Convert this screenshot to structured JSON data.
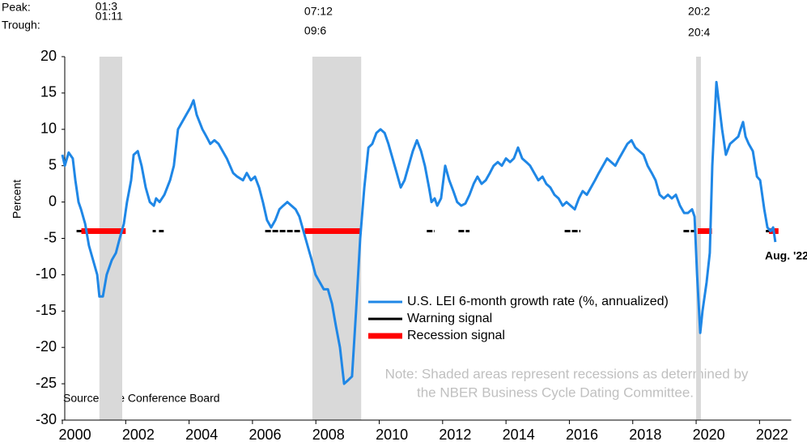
{
  "chart_data": {
    "type": "line",
    "y_label": "Percent",
    "xlim": [
      2000,
      2023
    ],
    "ylim": [
      -30,
      20
    ],
    "xticks": [
      {
        "value": 2000,
        "label": "2000"
      },
      {
        "value": 2002,
        "label": "2002"
      },
      {
        "value": 2004,
        "label": "2004"
      },
      {
        "value": 2006,
        "label": "2006"
      },
      {
        "value": 2008,
        "label": "2008"
      },
      {
        "value": 2010,
        "label": "2010"
      },
      {
        "value": 2012,
        "label": "2012"
      },
      {
        "value": 2014,
        "label": "2014"
      },
      {
        "value": 2016,
        "label": "2016"
      },
      {
        "value": 2018,
        "label": "2018"
      },
      {
        "value": 2020,
        "label": "2020"
      },
      {
        "value": 2022,
        "label": "2022"
      }
    ],
    "yticks": [
      20,
      15,
      10,
      5,
      0,
      -5,
      -10,
      -15,
      -20,
      -25,
      -30
    ],
    "peak_label": "Peak:",
    "trough_label": "Trough:",
    "recessions": [
      {
        "peak": "01:3",
        "trough": "01:11",
        "start": 2001.17,
        "end": 2001.89
      },
      {
        "peak": "07:12",
        "trough": "09:6",
        "start": 2007.89,
        "end": 2009.43
      },
      {
        "peak": "20:2",
        "trough": "20:4",
        "start": 2020.0,
        "end": 2020.15
      }
    ],
    "series": [
      {
        "name": "U.S. LEI 6-month growth rate (%, annualized)",
        "color": "#1f87e6",
        "x": [
          2000.0,
          2000.08,
          2000.2,
          2000.33,
          2000.41,
          2000.51,
          2000.59,
          2000.72,
          2000.84,
          2000.97,
          2001.1,
          2001.17,
          2001.28,
          2001.4,
          2001.56,
          2001.69,
          2001.81,
          2001.94,
          2002.04,
          2002.17,
          2002.25,
          2002.38,
          2002.5,
          2002.63,
          2002.76,
          2002.89,
          2002.96,
          2003.07,
          2003.22,
          2003.4,
          2003.52,
          2003.65,
          2003.78,
          2003.91,
          2004.04,
          2004.14,
          2004.24,
          2004.42,
          2004.55,
          2004.67,
          2004.8,
          2004.93,
          2005.06,
          2005.19,
          2005.39,
          2005.52,
          2005.7,
          2005.82,
          2005.95,
          2006.08,
          2006.21,
          2006.33,
          2006.46,
          2006.59,
          2006.72,
          2006.85,
          2006.97,
          2007.1,
          2007.23,
          2007.36,
          2007.48,
          2007.61,
          2007.74,
          2007.87,
          2007.99,
          2008.12,
          2008.25,
          2008.38,
          2008.51,
          2008.63,
          2008.76,
          2008.89,
          2009.02,
          2009.14,
          2009.27,
          2009.4,
          2009.53,
          2009.66,
          2009.78,
          2009.91,
          2010.04,
          2010.17,
          2010.29,
          2010.42,
          2010.55,
          2010.68,
          2010.8,
          2010.93,
          2011.06,
          2011.19,
          2011.32,
          2011.44,
          2011.57,
          2011.65,
          2011.75,
          2011.83,
          2011.95,
          2012.08,
          2012.21,
          2012.34,
          2012.46,
          2012.59,
          2012.72,
          2012.85,
          2012.98,
          2013.1,
          2013.23,
          2013.36,
          2013.49,
          2013.61,
          2013.74,
          2013.87,
          2014.0,
          2014.13,
          2014.25,
          2014.38,
          2014.51,
          2014.64,
          2014.76,
          2014.89,
          2015.02,
          2015.15,
          2015.27,
          2015.4,
          2015.53,
          2015.66,
          2015.79,
          2015.91,
          2016.04,
          2016.17,
          2016.3,
          2016.42,
          2016.55,
          2016.68,
          2016.81,
          2016.93,
          2017.06,
          2017.19,
          2017.32,
          2017.45,
          2017.57,
          2017.7,
          2017.83,
          2017.96,
          2018.08,
          2018.21,
          2018.34,
          2018.47,
          2018.6,
          2018.72,
          2018.85,
          2018.98,
          2019.11,
          2019.23,
          2019.36,
          2019.49,
          2019.62,
          2019.74,
          2019.87,
          2019.95,
          2020.03,
          2020.13,
          2020.2,
          2020.33,
          2020.43,
          2020.51,
          2020.59,
          2020.64,
          2020.71,
          2020.82,
          2020.94,
          2021.07,
          2021.2,
          2021.33,
          2021.4,
          2021.48,
          2021.56,
          2021.66,
          2021.79,
          2021.92,
          2022.02,
          2022.15,
          2022.25,
          2022.35,
          2022.43,
          2022.5
        ],
        "values": [
          6.5,
          5,
          6.8,
          6,
          3,
          0,
          -1,
          -3,
          -6,
          -8,
          -10,
          -13,
          -13,
          -10,
          -8,
          -7,
          -5,
          -3,
          0,
          3,
          6.5,
          7,
          5,
          2,
          0,
          -0.5,
          0.5,
          0,
          1,
          3,
          5,
          10,
          11,
          12,
          13,
          14,
          12,
          10,
          9,
          8,
          8.5,
          8,
          7,
          6,
          4,
          3.5,
          3,
          4,
          3,
          3.5,
          2,
          0,
          -2.5,
          -3.5,
          -2.5,
          -1,
          -0.5,
          0,
          -0.5,
          -1,
          -2,
          -4,
          -6,
          -8,
          -10,
          -11,
          -12,
          -12,
          -14,
          -17,
          -20,
          -25,
          -24.5,
          -24,
          -15,
          -5,
          2,
          7.5,
          8,
          9.5,
          10,
          9.5,
          8,
          6,
          4,
          2,
          3,
          5,
          7,
          8.5,
          7,
          5,
          2,
          0,
          0.5,
          -0.5,
          0.5,
          5,
          3,
          1.5,
          0,
          -0.5,
          -0.2,
          1,
          2.5,
          3.5,
          2.5,
          3,
          4,
          5,
          5.5,
          5,
          6,
          5.5,
          6,
          7.5,
          6,
          5.5,
          5,
          4,
          3,
          3.5,
          2.5,
          2,
          1,
          0.5,
          -0.5,
          0,
          -0.5,
          -1,
          0.5,
          1.5,
          1,
          2,
          3,
          4,
          5,
          6,
          5.5,
          5,
          6,
          7,
          8,
          8.5,
          7.5,
          7,
          6.5,
          5,
          4,
          3,
          1,
          0.5,
          1,
          0.5,
          1,
          -0.5,
          -1.5,
          -1.5,
          -1,
          -2,
          -10,
          -18,
          -15,
          -11,
          -7,
          5,
          12,
          16.5,
          14,
          10,
          6.5,
          8,
          8.5,
          9,
          10,
          11,
          9,
          8,
          7,
          3.5,
          3,
          -1,
          -3.5,
          -4,
          -3.5,
          -5.5
        ]
      },
      {
        "name": "Warning signal",
        "color": "#000000",
        "x": [
          2000.45,
          2000.6,
          2001.0,
          2002.85,
          2002.95,
          2003.0,
          2003.05,
          2003.2,
          2005.0,
          2006.4,
          2007.5,
          2009.5,
          2011.5,
          2011.75,
          2012.0,
          2012.5,
          2012.85,
          2014.0,
          2015.85,
          2016.35,
          2018.0,
          2019.6,
          2019.95,
          2021.0,
          2022.2,
          2022.45
        ],
        "values": [
          -4,
          -4,
          null,
          -4,
          -4,
          null,
          -4,
          -4,
          null,
          -4,
          -4,
          null,
          -4,
          -4,
          null,
          -4,
          -4,
          null,
          -4,
          -4,
          null,
          -4,
          -4,
          null,
          -4,
          -4
        ]
      },
      {
        "name": "Recession signal",
        "color": "#ff0000",
        "x": [
          2000.6,
          2002.0,
          2005.0,
          2007.65,
          2009.45,
          2015.0,
          2020.05,
          2020.5,
          2021.0,
          2022.3,
          2022.6
        ],
        "values": [
          -4,
          -4,
          null,
          -4,
          -4,
          null,
          -4,
          -4,
          null,
          -4,
          -4
        ]
      }
    ],
    "end_label": "Aug. '22",
    "source": "Source: The Conference Board",
    "note": [
      "Note: Shaded areas represent recessions as determined by",
      "the NBER Business Cycle Dating Committee."
    ]
  }
}
